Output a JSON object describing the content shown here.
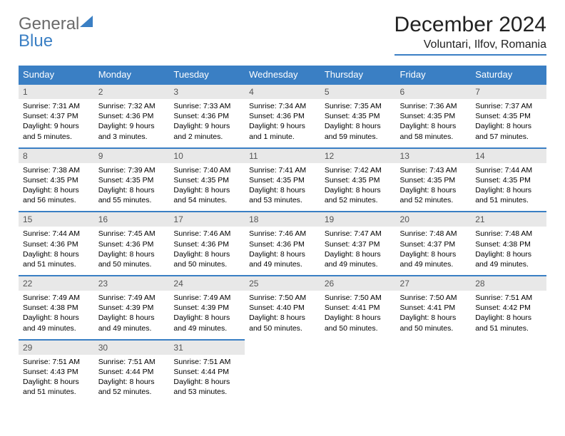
{
  "logo": {
    "text_gray": "General",
    "text_blue": "Blue"
  },
  "header": {
    "month": "December 2024",
    "location": "Voluntari, Ilfov, Romania"
  },
  "weekdays": [
    "Sunday",
    "Monday",
    "Tuesday",
    "Wednesday",
    "Thursday",
    "Friday",
    "Saturday"
  ],
  "colors": {
    "accent": "#3a7fc4",
    "daynum_bg": "#e8e8e8",
    "text": "#000000",
    "bg": "#ffffff"
  },
  "calendar": {
    "rows": 5,
    "cols": 7,
    "days": [
      {
        "n": "1",
        "sr": "7:31 AM",
        "ss": "4:37 PM",
        "dl": "9 hours and 5 minutes."
      },
      {
        "n": "2",
        "sr": "7:32 AM",
        "ss": "4:36 PM",
        "dl": "9 hours and 3 minutes."
      },
      {
        "n": "3",
        "sr": "7:33 AM",
        "ss": "4:36 PM",
        "dl": "9 hours and 2 minutes."
      },
      {
        "n": "4",
        "sr": "7:34 AM",
        "ss": "4:36 PM",
        "dl": "9 hours and 1 minute."
      },
      {
        "n": "5",
        "sr": "7:35 AM",
        "ss": "4:35 PM",
        "dl": "8 hours and 59 minutes."
      },
      {
        "n": "6",
        "sr": "7:36 AM",
        "ss": "4:35 PM",
        "dl": "8 hours and 58 minutes."
      },
      {
        "n": "7",
        "sr": "7:37 AM",
        "ss": "4:35 PM",
        "dl": "8 hours and 57 minutes."
      },
      {
        "n": "8",
        "sr": "7:38 AM",
        "ss": "4:35 PM",
        "dl": "8 hours and 56 minutes."
      },
      {
        "n": "9",
        "sr": "7:39 AM",
        "ss": "4:35 PM",
        "dl": "8 hours and 55 minutes."
      },
      {
        "n": "10",
        "sr": "7:40 AM",
        "ss": "4:35 PM",
        "dl": "8 hours and 54 minutes."
      },
      {
        "n": "11",
        "sr": "7:41 AM",
        "ss": "4:35 PM",
        "dl": "8 hours and 53 minutes."
      },
      {
        "n": "12",
        "sr": "7:42 AM",
        "ss": "4:35 PM",
        "dl": "8 hours and 52 minutes."
      },
      {
        "n": "13",
        "sr": "7:43 AM",
        "ss": "4:35 PM",
        "dl": "8 hours and 52 minutes."
      },
      {
        "n": "14",
        "sr": "7:44 AM",
        "ss": "4:35 PM",
        "dl": "8 hours and 51 minutes."
      },
      {
        "n": "15",
        "sr": "7:44 AM",
        "ss": "4:36 PM",
        "dl": "8 hours and 51 minutes."
      },
      {
        "n": "16",
        "sr": "7:45 AM",
        "ss": "4:36 PM",
        "dl": "8 hours and 50 minutes."
      },
      {
        "n": "17",
        "sr": "7:46 AM",
        "ss": "4:36 PM",
        "dl": "8 hours and 50 minutes."
      },
      {
        "n": "18",
        "sr": "7:46 AM",
        "ss": "4:36 PM",
        "dl": "8 hours and 49 minutes."
      },
      {
        "n": "19",
        "sr": "7:47 AM",
        "ss": "4:37 PM",
        "dl": "8 hours and 49 minutes."
      },
      {
        "n": "20",
        "sr": "7:48 AM",
        "ss": "4:37 PM",
        "dl": "8 hours and 49 minutes."
      },
      {
        "n": "21",
        "sr": "7:48 AM",
        "ss": "4:38 PM",
        "dl": "8 hours and 49 minutes."
      },
      {
        "n": "22",
        "sr": "7:49 AM",
        "ss": "4:38 PM",
        "dl": "8 hours and 49 minutes."
      },
      {
        "n": "23",
        "sr": "7:49 AM",
        "ss": "4:39 PM",
        "dl": "8 hours and 49 minutes."
      },
      {
        "n": "24",
        "sr": "7:49 AM",
        "ss": "4:39 PM",
        "dl": "8 hours and 49 minutes."
      },
      {
        "n": "25",
        "sr": "7:50 AM",
        "ss": "4:40 PM",
        "dl": "8 hours and 50 minutes."
      },
      {
        "n": "26",
        "sr": "7:50 AM",
        "ss": "4:41 PM",
        "dl": "8 hours and 50 minutes."
      },
      {
        "n": "27",
        "sr": "7:50 AM",
        "ss": "4:41 PM",
        "dl": "8 hours and 50 minutes."
      },
      {
        "n": "28",
        "sr": "7:51 AM",
        "ss": "4:42 PM",
        "dl": "8 hours and 51 minutes."
      },
      {
        "n": "29",
        "sr": "7:51 AM",
        "ss": "4:43 PM",
        "dl": "8 hours and 51 minutes."
      },
      {
        "n": "30",
        "sr": "7:51 AM",
        "ss": "4:44 PM",
        "dl": "8 hours and 52 minutes."
      },
      {
        "n": "31",
        "sr": "7:51 AM",
        "ss": "4:44 PM",
        "dl": "8 hours and 53 minutes."
      }
    ]
  },
  "labels": {
    "sunrise": "Sunrise:",
    "sunset": "Sunset:",
    "daylight": "Daylight:"
  }
}
